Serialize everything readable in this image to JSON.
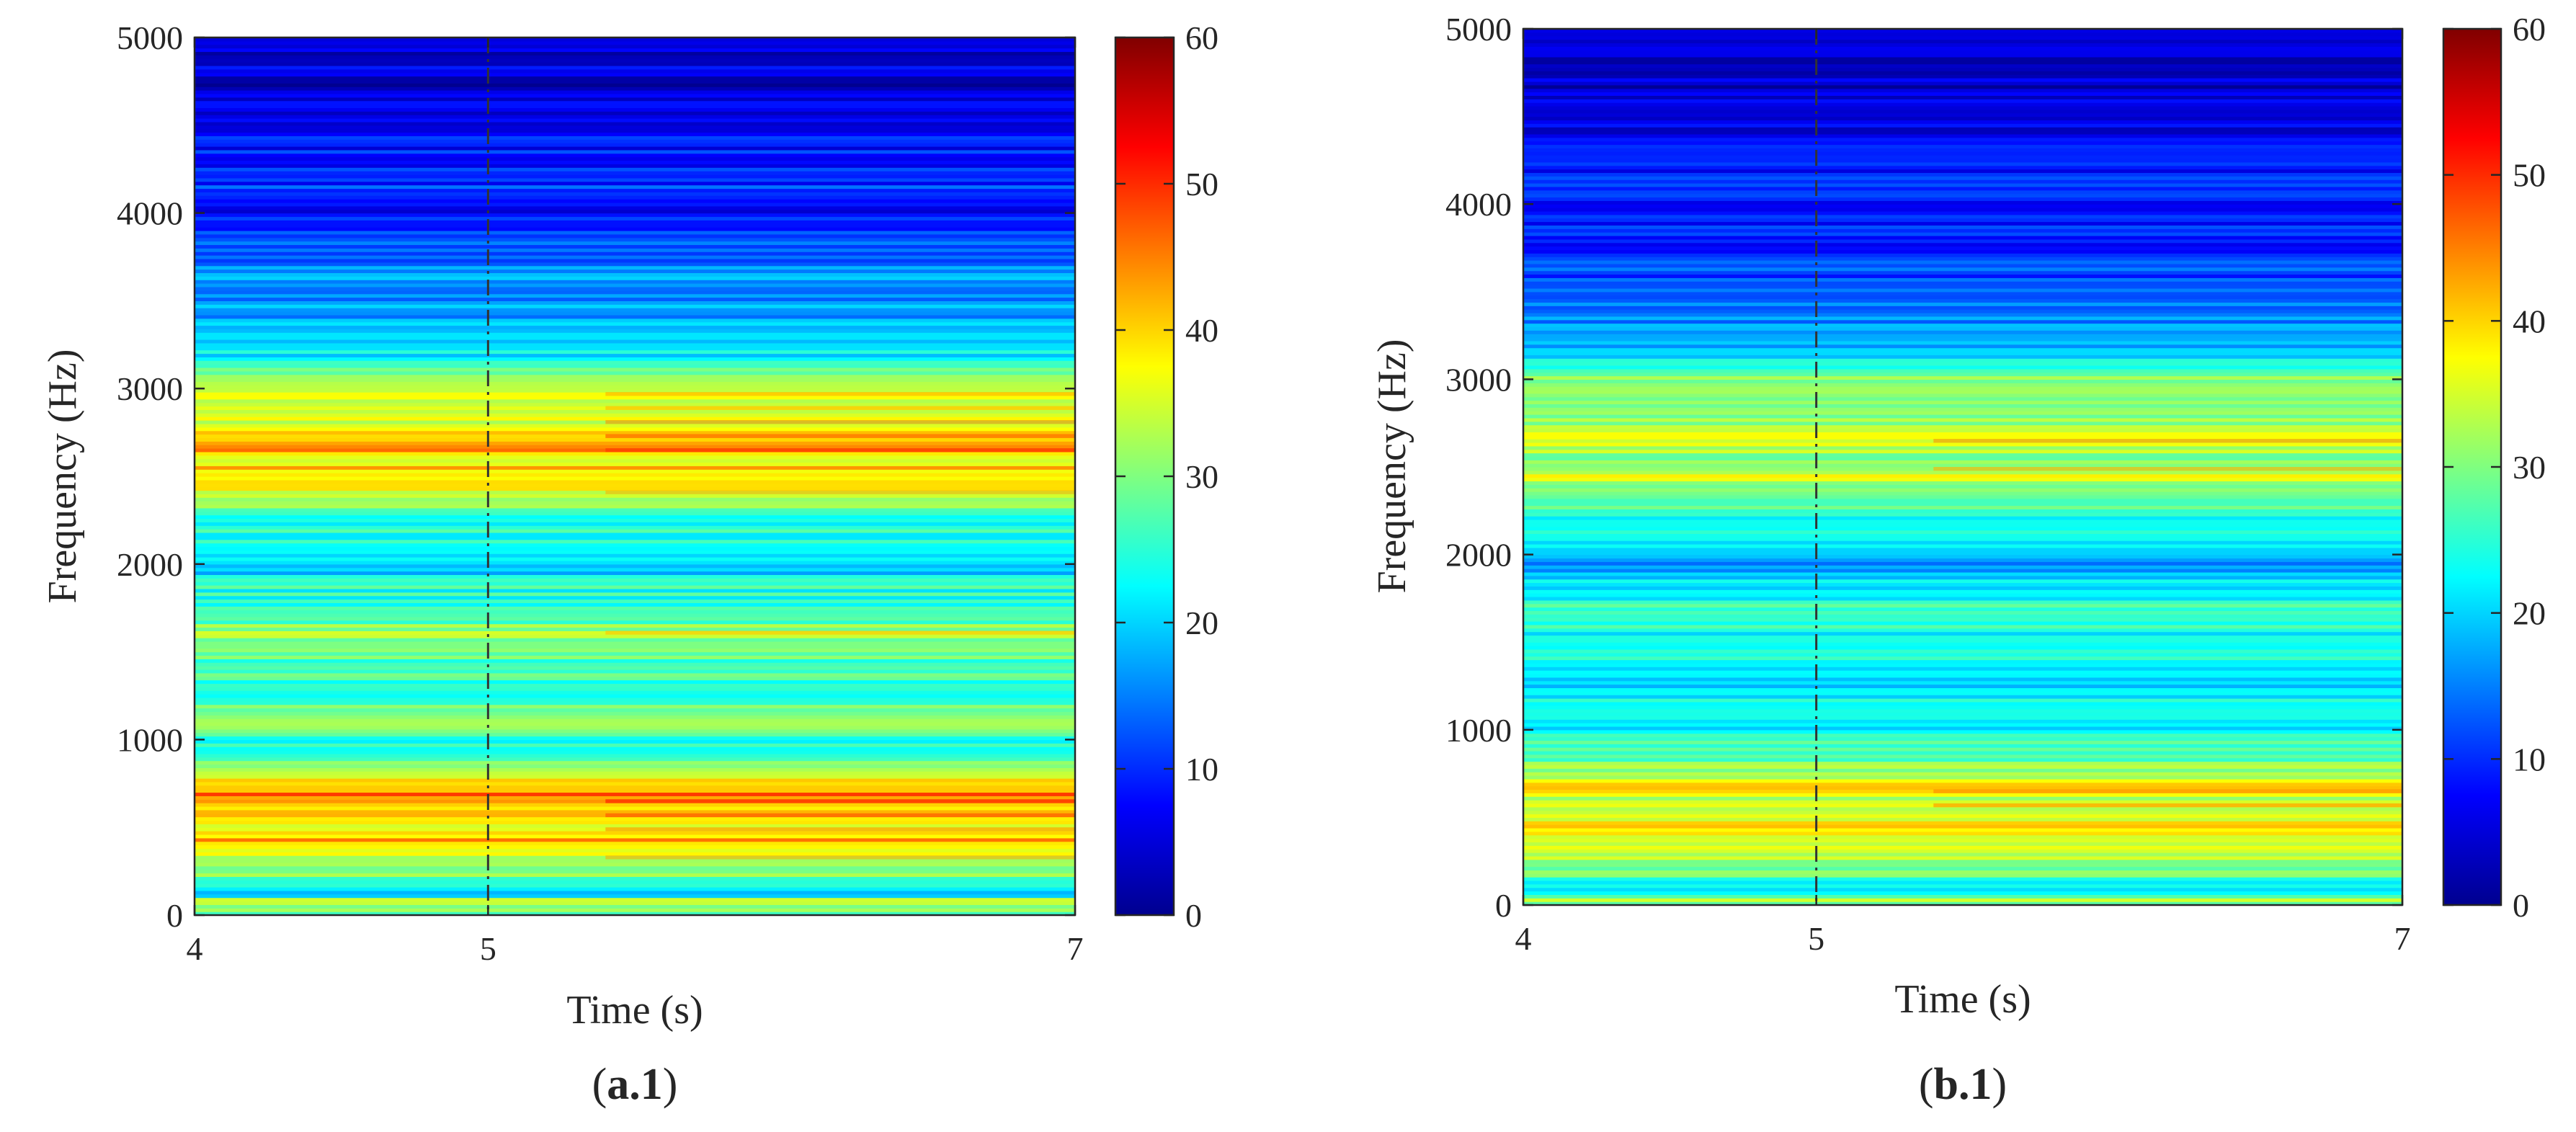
{
  "chart_data": [
    {
      "type": "heatmap",
      "panel_label": {
        "prefix": "(",
        "bold": "a.1",
        "suffix": ")"
      },
      "xlabel": "Time (s)",
      "ylabel": "Frequency (Hz)",
      "xlim": [
        4,
        7
      ],
      "ylim": [
        0,
        5000
      ],
      "xticks": [
        4,
        5,
        7
      ],
      "yticks": [
        0,
        1000,
        2000,
        3000,
        4000,
        5000
      ],
      "vline": {
        "x": 5,
        "style": "dash-dot"
      },
      "colorbar": {
        "range": [
          0,
          60
        ],
        "ticks": [
          0,
          10,
          20,
          30,
          40,
          50,
          60
        ],
        "colormap": "jet"
      },
      "bands": [
        {
          "f": 0,
          "v": 20
        },
        {
          "f": 40,
          "v": 32
        },
        {
          "f": 80,
          "v": 36
        },
        {
          "f": 120,
          "v": 18
        },
        {
          "f": 200,
          "v": 28
        },
        {
          "f": 300,
          "v": 33
        },
        {
          "f": 380,
          "v": 38
        },
        {
          "f": 420,
          "v": 44
        },
        {
          "f": 480,
          "v": 36
        },
        {
          "f": 560,
          "v": 40
        },
        {
          "f": 620,
          "v": 42
        },
        {
          "f": 680,
          "v": 47
        },
        {
          "f": 720,
          "v": 40
        },
        {
          "f": 800,
          "v": 36
        },
        {
          "f": 900,
          "v": 26
        },
        {
          "f": 1000,
          "v": 25
        },
        {
          "f": 1100,
          "v": 30
        },
        {
          "f": 1200,
          "v": 27
        },
        {
          "f": 1300,
          "v": 24
        },
        {
          "f": 1400,
          "v": 27
        },
        {
          "f": 1500,
          "v": 28
        },
        {
          "f": 1600,
          "v": 33
        },
        {
          "f": 1700,
          "v": 26
        },
        {
          "f": 1800,
          "v": 24
        },
        {
          "f": 1900,
          "v": 25
        },
        {
          "f": 1950,
          "v": 20
        },
        {
          "f": 2000,
          "v": 23
        },
        {
          "f": 2100,
          "v": 25
        },
        {
          "f": 2200,
          "v": 24
        },
        {
          "f": 2300,
          "v": 27
        },
        {
          "f": 2400,
          "v": 34
        },
        {
          "f": 2450,
          "v": 38
        },
        {
          "f": 2500,
          "v": 40
        },
        {
          "f": 2550,
          "v": 41
        },
        {
          "f": 2600,
          "v": 38
        },
        {
          "f": 2680,
          "v": 45
        },
        {
          "f": 2720,
          "v": 40
        },
        {
          "f": 2800,
          "v": 36
        },
        {
          "f": 2900,
          "v": 33
        },
        {
          "f": 3000,
          "v": 35
        },
        {
          "f": 3050,
          "v": 30
        },
        {
          "f": 3150,
          "v": 24
        },
        {
          "f": 3250,
          "v": 20
        },
        {
          "f": 3400,
          "v": 18
        },
        {
          "f": 3500,
          "v": 16
        },
        {
          "f": 3600,
          "v": 17
        },
        {
          "f": 3700,
          "v": 14
        },
        {
          "f": 3800,
          "v": 13
        },
        {
          "f": 3900,
          "v": 11
        },
        {
          "f": 4000,
          "v": 8
        },
        {
          "f": 4100,
          "v": 11
        },
        {
          "f": 4200,
          "v": 10
        },
        {
          "f": 4300,
          "v": 9
        },
        {
          "f": 4400,
          "v": 8
        },
        {
          "f": 4500,
          "v": 7
        },
        {
          "f": 4600,
          "v": 6
        },
        {
          "f": 4700,
          "v": 4
        },
        {
          "f": 4800,
          "v": 6
        },
        {
          "f": 4900,
          "v": 5
        },
        {
          "f": 5000,
          "v": 4
        }
      ]
    },
    {
      "type": "heatmap",
      "panel_label": {
        "prefix": "(",
        "bold": "b.1",
        "suffix": ")"
      },
      "xlabel": "Time (s)",
      "ylabel": "Frequency (Hz)",
      "xlim": [
        4,
        7
      ],
      "ylim": [
        0,
        5000
      ],
      "xticks": [
        4,
        5,
        7
      ],
      "yticks": [
        0,
        1000,
        2000,
        3000,
        4000,
        5000
      ],
      "vline": {
        "x": 5,
        "style": "dash-dot"
      },
      "colorbar": {
        "range": [
          0,
          60
        ],
        "ticks": [
          0,
          10,
          20,
          30,
          40,
          50,
          60
        ],
        "colormap": "jet"
      },
      "bands": [
        {
          "f": 0,
          "v": 22
        },
        {
          "f": 40,
          "v": 34
        },
        {
          "f": 80,
          "v": 18
        },
        {
          "f": 120,
          "v": 24
        },
        {
          "f": 200,
          "v": 30
        },
        {
          "f": 300,
          "v": 34
        },
        {
          "f": 380,
          "v": 36
        },
        {
          "f": 440,
          "v": 40
        },
        {
          "f": 500,
          "v": 34
        },
        {
          "f": 560,
          "v": 36
        },
        {
          "f": 620,
          "v": 34
        },
        {
          "f": 680,
          "v": 42
        },
        {
          "f": 720,
          "v": 36
        },
        {
          "f": 800,
          "v": 30
        },
        {
          "f": 900,
          "v": 26
        },
        {
          "f": 1000,
          "v": 22
        },
        {
          "f": 1100,
          "v": 24
        },
        {
          "f": 1200,
          "v": 22
        },
        {
          "f": 1300,
          "v": 20
        },
        {
          "f": 1400,
          "v": 24
        },
        {
          "f": 1500,
          "v": 21
        },
        {
          "f": 1600,
          "v": 24
        },
        {
          "f": 1700,
          "v": 26
        },
        {
          "f": 1800,
          "v": 22
        },
        {
          "f": 1900,
          "v": 19
        },
        {
          "f": 1950,
          "v": 16
        },
        {
          "f": 2000,
          "v": 18
        },
        {
          "f": 2100,
          "v": 22
        },
        {
          "f": 2200,
          "v": 25
        },
        {
          "f": 2300,
          "v": 27
        },
        {
          "f": 2400,
          "v": 30
        },
        {
          "f": 2450,
          "v": 36
        },
        {
          "f": 2500,
          "v": 33
        },
        {
          "f": 2550,
          "v": 31
        },
        {
          "f": 2600,
          "v": 34
        },
        {
          "f": 2680,
          "v": 38
        },
        {
          "f": 2720,
          "v": 33
        },
        {
          "f": 2800,
          "v": 30
        },
        {
          "f": 2900,
          "v": 28
        },
        {
          "f": 3000,
          "v": 30
        },
        {
          "f": 3050,
          "v": 27
        },
        {
          "f": 3150,
          "v": 20
        },
        {
          "f": 3250,
          "v": 17
        },
        {
          "f": 3400,
          "v": 14
        },
        {
          "f": 3500,
          "v": 13
        },
        {
          "f": 3600,
          "v": 12
        },
        {
          "f": 3700,
          "v": 11
        },
        {
          "f": 3800,
          "v": 10
        },
        {
          "f": 3900,
          "v": 9
        },
        {
          "f": 4000,
          "v": 8
        },
        {
          "f": 4100,
          "v": 9
        },
        {
          "f": 4200,
          "v": 8
        },
        {
          "f": 4300,
          "v": 7
        },
        {
          "f": 4400,
          "v": 6
        },
        {
          "f": 4500,
          "v": 6
        },
        {
          "f": 4600,
          "v": 5
        },
        {
          "f": 4700,
          "v": 4
        },
        {
          "f": 4800,
          "v": 5
        },
        {
          "f": 4900,
          "v": 4
        },
        {
          "f": 5000,
          "v": 3
        }
      ]
    }
  ]
}
